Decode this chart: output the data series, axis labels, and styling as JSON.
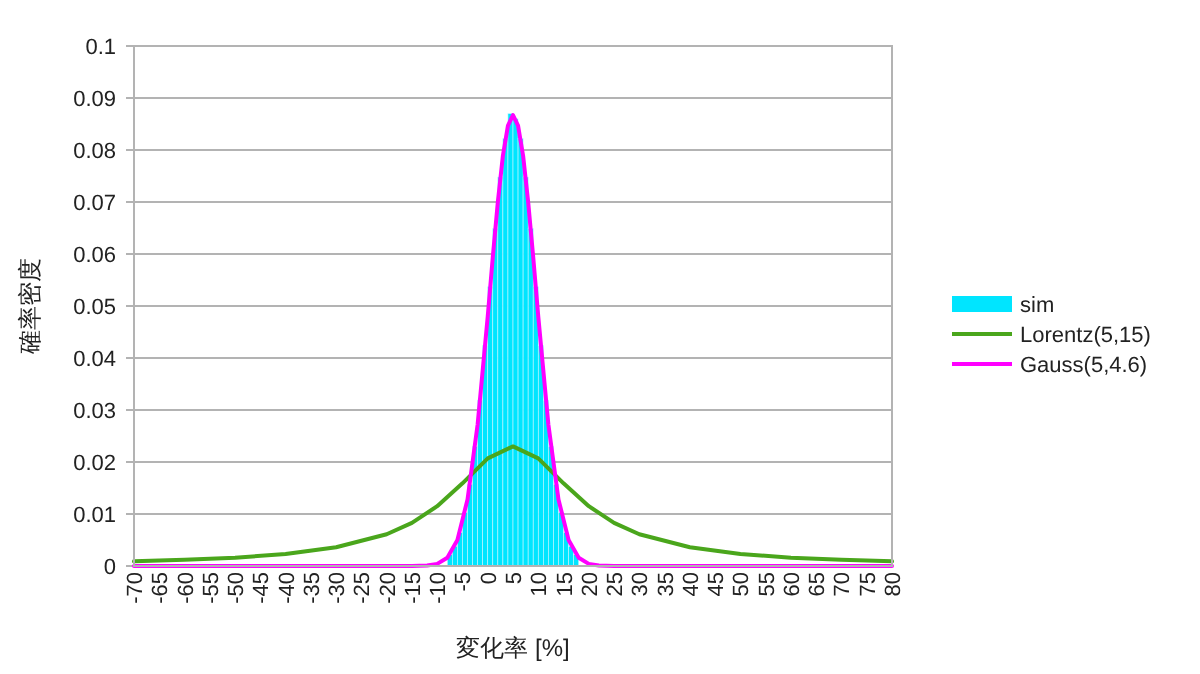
{
  "chart_data": {
    "type": "histogram",
    "xlabel": "変化率 [%]",
    "ylabel": "確率密度",
    "xlim": [
      -70,
      80
    ],
    "xticks": [
      -70,
      -65,
      -60,
      -55,
      -50,
      -45,
      -40,
      -35,
      -30,
      -25,
      -20,
      -15,
      -10,
      -5,
      0,
      5,
      10,
      15,
      20,
      25,
      30,
      35,
      40,
      45,
      50,
      55,
      60,
      65,
      70,
      75,
      80
    ],
    "ylim": [
      0,
      0.1
    ],
    "yticks": [
      0,
      0.01,
      0.02,
      0.03,
      0.04,
      0.05,
      0.06,
      0.07,
      0.08,
      0.09,
      0.1
    ],
    "grid": "y",
    "legend": "right",
    "series": [
      {
        "name": "sim",
        "type": "histogram",
        "color": "#00e5ff",
        "bins": [
          -8,
          -7,
          -6,
          -5,
          -4,
          -3,
          -2,
          -1,
          0,
          1,
          2,
          3,
          4,
          5,
          6,
          7,
          8,
          9,
          10,
          11,
          12,
          13,
          14,
          15,
          16,
          17,
          18
        ],
        "values": [
          0.0022,
          0.0038,
          0.0064,
          0.0103,
          0.0157,
          0.023,
          0.0319,
          0.0424,
          0.0537,
          0.0649,
          0.0748,
          0.0822,
          0.087,
          0.086,
          0.0822,
          0.0748,
          0.0649,
          0.0537,
          0.0424,
          0.0319,
          0.023,
          0.0157,
          0.0103,
          0.0064,
          0.0038,
          0.0022
        ]
      },
      {
        "name": "Lorentz(5,15)",
        "type": "line",
        "color": "#4aa61c",
        "x": [
          -70,
          -60,
          -50,
          -40,
          -30,
          -20,
          -15,
          -10,
          -5,
          0,
          5,
          10,
          15,
          20,
          25,
          30,
          40,
          50,
          60,
          70,
          80
        ],
        "values": [
          0.0009,
          0.0012,
          0.0016,
          0.0023,
          0.0036,
          0.0061,
          0.0083,
          0.0115,
          0.0159,
          0.0207,
          0.023,
          0.0207,
          0.0159,
          0.0115,
          0.0083,
          0.0061,
          0.0036,
          0.0023,
          0.0016,
          0.0012,
          0.0009
        ]
      },
      {
        "name": "Gauss(5,4.6)",
        "type": "line",
        "color": "#ff00ff",
        "x": [
          -70,
          -15,
          -12,
          -10,
          -8,
          -6,
          -4,
          -2,
          0,
          1,
          2,
          3,
          4,
          5,
          6,
          7,
          8,
          9,
          10,
          12,
          14,
          16,
          18,
          20,
          22,
          25,
          80
        ],
        "values": [
          0,
          0,
          0.0001,
          0.0004,
          0.0016,
          0.005,
          0.0128,
          0.0272,
          0.048,
          0.0594,
          0.07,
          0.0789,
          0.0847,
          0.0867,
          0.0847,
          0.0789,
          0.07,
          0.0594,
          0.048,
          0.0272,
          0.0128,
          0.005,
          0.0016,
          0.0004,
          0.0001,
          0,
          0
        ]
      }
    ]
  }
}
